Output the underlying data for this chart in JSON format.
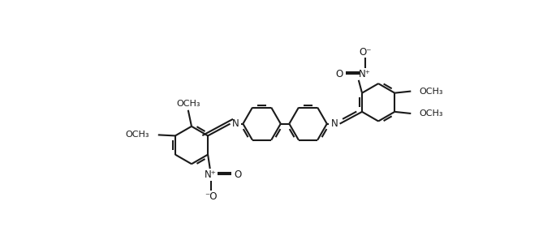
{
  "bg_color": "#ffffff",
  "line_color": "#1a1a1a",
  "lw": 1.5,
  "fs": 8.5,
  "fig_w": 6.85,
  "fig_h": 2.96,
  "dpi": 100,
  "r": 0.44,
  "dbo": 0.055,
  "shrink": 0.11,
  "xlim": [
    0.0,
    10.0
  ],
  "ylim": [
    0.0,
    4.32
  ]
}
